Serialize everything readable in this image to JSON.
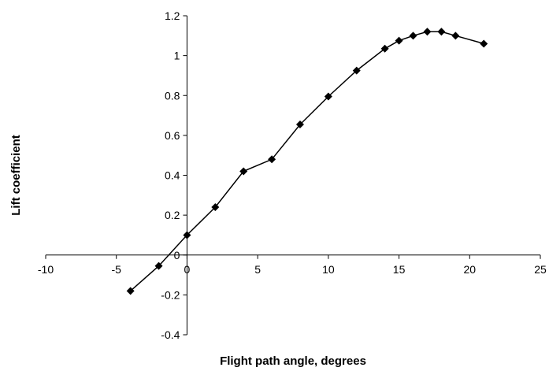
{
  "chart_data": {
    "type": "scatter",
    "title": "",
    "xlabel": "Flight path angle, degrees",
    "ylabel": "Lift coefficient",
    "xlim": [
      -10,
      25
    ],
    "ylim": [
      -0.4,
      1.2
    ],
    "xticks": [
      "-10",
      "-5",
      "0",
      "5",
      "10",
      "15",
      "20",
      "25"
    ],
    "yticks": [
      "-0.4",
      "-0.2",
      "0",
      "0.2",
      "0.4",
      "0.6",
      "0.8",
      "1",
      "1.2"
    ],
    "grid": false,
    "legend": "none",
    "marker": "diamond",
    "line_color": "#000000",
    "series": [
      {
        "x": [
          -4,
          -2,
          0,
          2,
          4,
          6,
          8,
          10,
          12,
          14,
          15,
          16,
          17,
          18,
          19,
          21
        ],
        "y": [
          -0.18,
          -0.055,
          0.1,
          0.24,
          0.42,
          0.48,
          0.655,
          0.795,
          0.925,
          1.035,
          1.075,
          1.1,
          1.12,
          1.12,
          1.1,
          1.06
        ]
      }
    ]
  }
}
